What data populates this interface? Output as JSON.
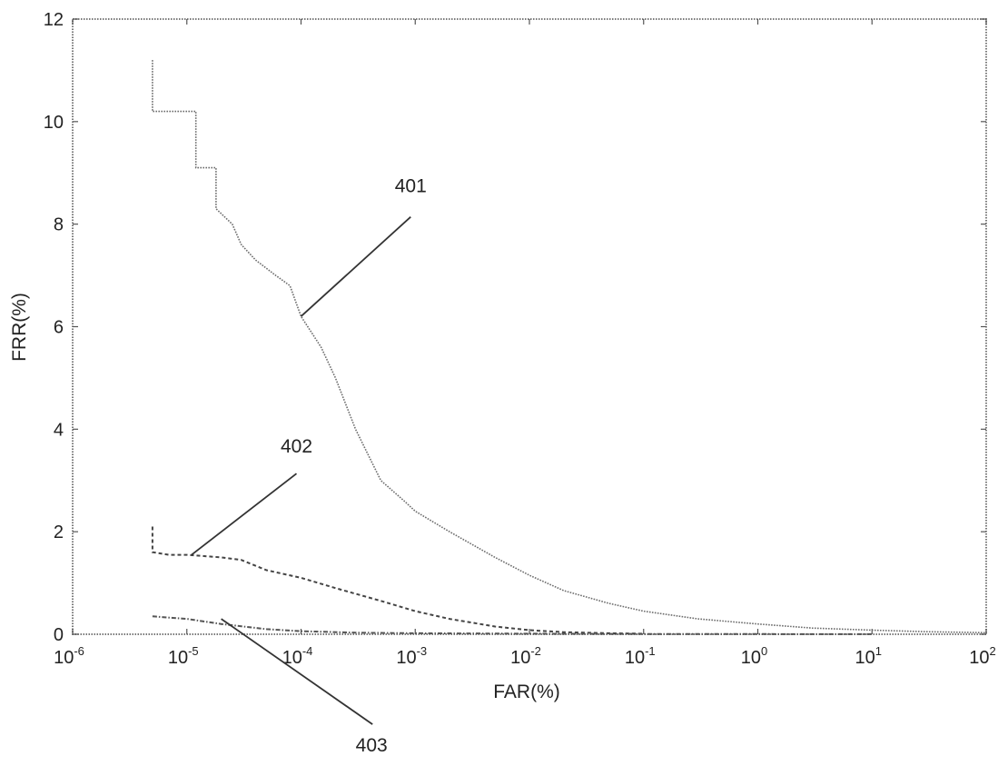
{
  "chart_data": {
    "type": "line",
    "xlabel": "FAR(%)",
    "ylabel": "FRR(%)",
    "x_scale": "log",
    "xlim": [
      1e-06,
      100
    ],
    "ylim": [
      0,
      12
    ],
    "x_ticks": [
      {
        "value": 1e-06,
        "base": "10",
        "exp": "-6"
      },
      {
        "value": 1e-05,
        "base": "10",
        "exp": "-5"
      },
      {
        "value": 0.0001,
        "base": "10",
        "exp": "-4"
      },
      {
        "value": 0.001,
        "base": "10",
        "exp": "-3"
      },
      {
        "value": 0.01,
        "base": "10",
        "exp": "-2"
      },
      {
        "value": 0.1,
        "base": "10",
        "exp": "-1"
      },
      {
        "value": 1,
        "base": "10",
        "exp": "0"
      },
      {
        "value": 10,
        "base": "10",
        "exp": "1"
      },
      {
        "value": 100,
        "base": "10",
        "exp": "2"
      }
    ],
    "y_ticks": [
      {
        "value": 0,
        "label": "0"
      },
      {
        "value": 2,
        "label": "2"
      },
      {
        "value": 4,
        "label": "4"
      },
      {
        "value": 6,
        "label": "6"
      },
      {
        "value": 8,
        "label": "8"
      },
      {
        "value": 10,
        "label": "10"
      },
      {
        "value": 12,
        "label": "12"
      }
    ],
    "grid": false,
    "series": [
      {
        "id": "401",
        "style": "dotted",
        "color": "#6c6c6c",
        "x": [
          5e-06,
          5e-06,
          1.2e-05,
          1.2e-05,
          1.8e-05,
          1.8e-05,
          2.5e-05,
          3e-05,
          4e-05,
          6e-05,
          8e-05,
          0.0001,
          0.00015,
          0.0002,
          0.0003,
          0.0005,
          0.0008,
          0.001,
          0.002,
          0.005,
          0.01,
          0.02,
          0.05,
          0.1,
          0.3,
          1,
          3,
          10,
          30,
          100
        ],
        "y": [
          11.2,
          10.2,
          10.2,
          9.1,
          9.1,
          8.3,
          8.0,
          7.6,
          7.3,
          7.0,
          6.8,
          6.2,
          5.6,
          5.0,
          4.0,
          3.0,
          2.6,
          2.4,
          2.0,
          1.5,
          1.15,
          0.85,
          0.6,
          0.45,
          0.3,
          0.2,
          0.12,
          0.08,
          0.05,
          0.03
        ]
      },
      {
        "id": "402",
        "style": "dashed",
        "color": "#444444",
        "x": [
          5e-06,
          5e-06,
          7e-06,
          1e-05,
          2e-05,
          3e-05,
          5e-05,
          0.0001,
          0.0002,
          0.0005,
          0.001,
          0.002,
          0.005,
          0.01,
          0.02,
          0.05,
          0.1
        ],
        "y": [
          2.1,
          1.6,
          1.55,
          1.55,
          1.5,
          1.45,
          1.25,
          1.1,
          0.9,
          0.65,
          0.45,
          0.3,
          0.15,
          0.08,
          0.04,
          0.02,
          0.01
        ]
      },
      {
        "id": "403",
        "style": "dash-dot",
        "color": "#555555",
        "x": [
          5e-06,
          1e-05,
          2e-05,
          5e-05,
          0.0001,
          0.0003,
          0.001,
          0.01,
          0.1,
          1,
          10
        ],
        "y": [
          0.35,
          0.3,
          0.2,
          0.1,
          0.06,
          0.03,
          0.02,
          0.01,
          0.005,
          0.003,
          0.002
        ]
      }
    ],
    "annotations": [
      {
        "label": "401",
        "target_x": 0.0001,
        "target_y": 6.2,
        "text_x": 0.001,
        "text_y": 8.0
      },
      {
        "label": "402",
        "target_x": 1.1e-05,
        "target_y": 1.55,
        "text_x": 0.0001,
        "text_y": 3.4
      },
      {
        "label": "403",
        "target_x": 2e-05,
        "target_y": 0.3,
        "text_x": 0.0004,
        "text_y": -2.2
      }
    ]
  }
}
